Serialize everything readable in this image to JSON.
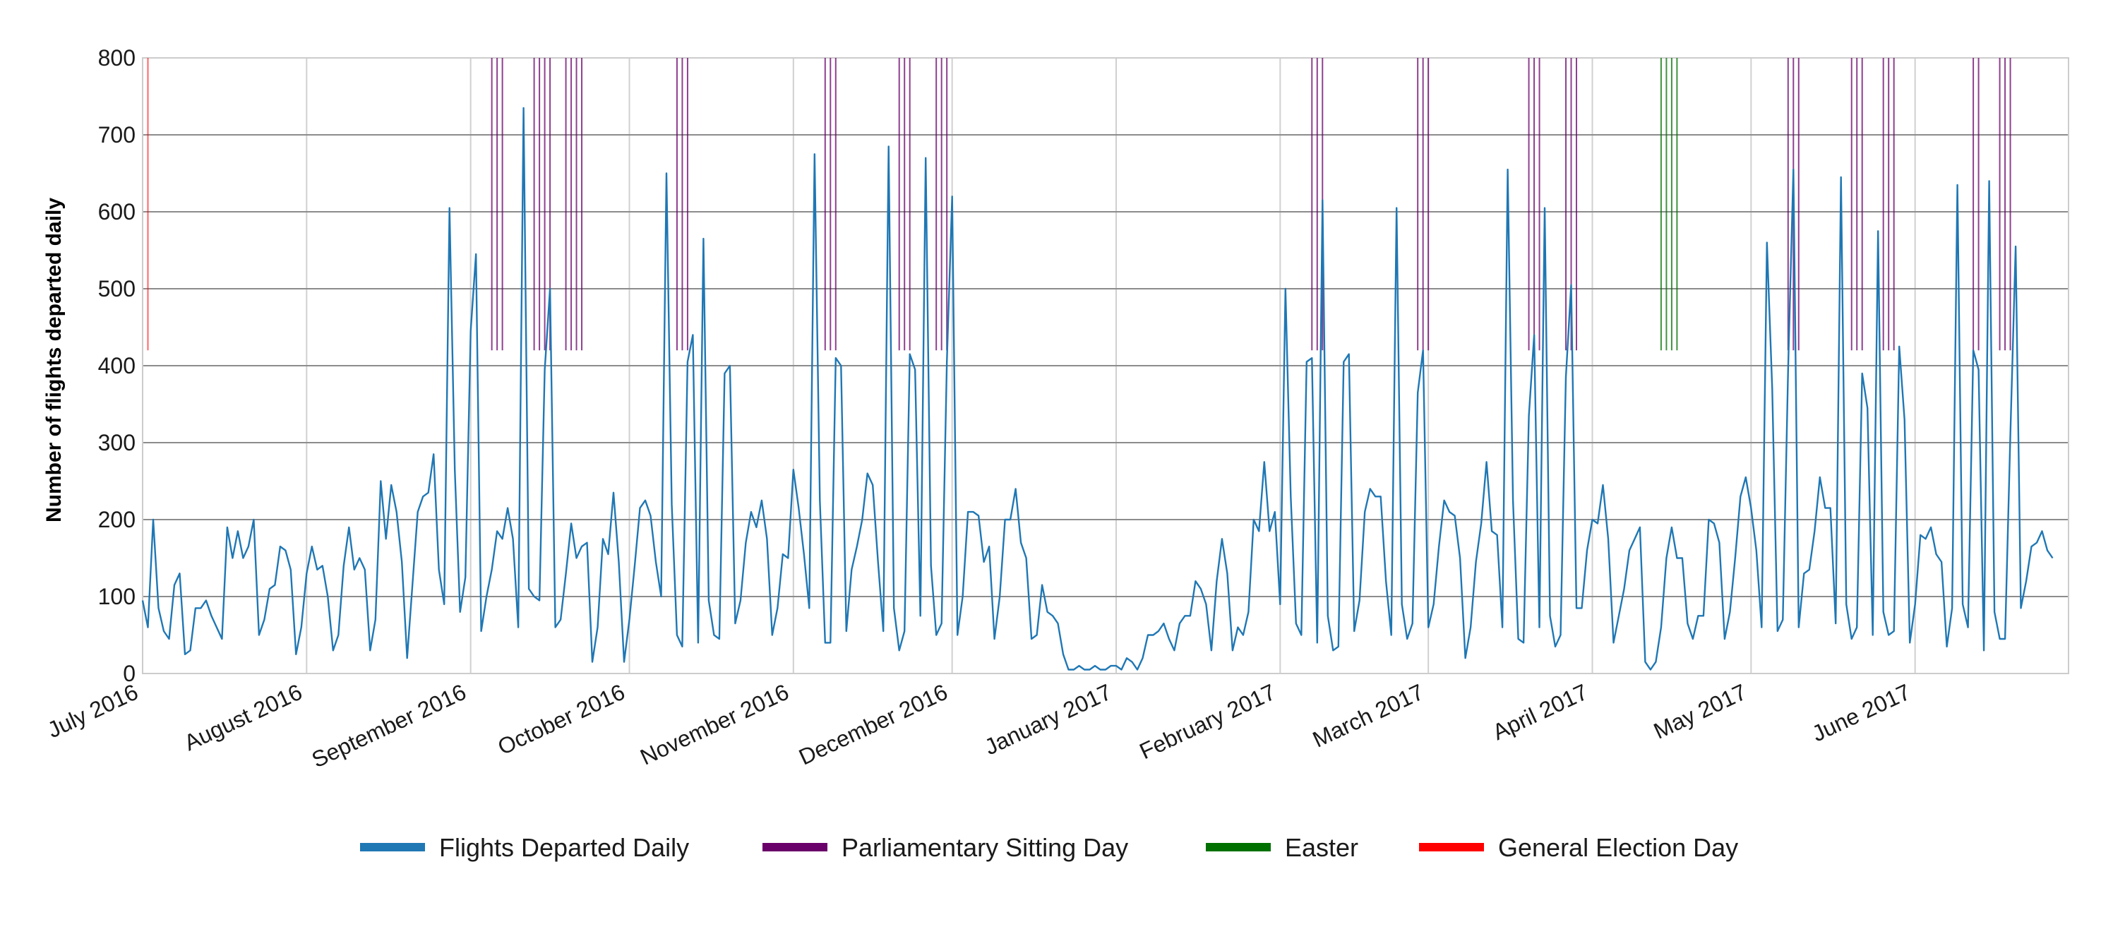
{
  "chart_data": {
    "type": "line",
    "title": "",
    "xlabel": "",
    "ylabel": "Number of flights departed daily",
    "ylim": [
      0,
      800
    ],
    "xlim": [
      "2016-07-01",
      "2017-06-30"
    ],
    "y_ticks": [
      "0",
      "100",
      "200",
      "300",
      "400",
      "500",
      "600",
      "700",
      "800"
    ],
    "x_ticks": [
      {
        "date": "2016-07-01",
        "label": "July 2016"
      },
      {
        "date": "2016-08-01",
        "label": "August 2016"
      },
      {
        "date": "2016-09-01",
        "label": "September 2016"
      },
      {
        "date": "2016-10-01",
        "label": "October 2016"
      },
      {
        "date": "2016-11-01",
        "label": "November 2016"
      },
      {
        "date": "2016-12-01",
        "label": "December 2016"
      },
      {
        "date": "2017-01-01",
        "label": "January 2017"
      },
      {
        "date": "2017-02-01",
        "label": "February 2017"
      },
      {
        "date": "2017-03-01",
        "label": "March 2017"
      },
      {
        "date": "2017-04-01",
        "label": "April 2017"
      },
      {
        "date": "2017-05-01",
        "label": "May 2017"
      },
      {
        "date": "2017-06-01",
        "label": "June 2017"
      }
    ],
    "grid": true,
    "legend_position": "bottom",
    "series": [
      {
        "name": "Flights Departed Daily",
        "color": "#1f77b4",
        "start_date": "2016-07-01",
        "frequency": "daily",
        "values": [
          95,
          60,
          200,
          85,
          55,
          45,
          115,
          130,
          25,
          30,
          85,
          85,
          95,
          75,
          60,
          45,
          190,
          150,
          185,
          150,
          165,
          200,
          50,
          70,
          110,
          115,
          165,
          160,
          135,
          25,
          60,
          130,
          165,
          135,
          140,
          100,
          30,
          50,
          140,
          190,
          135,
          150,
          135,
          30,
          70,
          250,
          175,
          245,
          210,
          145,
          20,
          115,
          210,
          230,
          235,
          285,
          135,
          90,
          605,
          265,
          80,
          125,
          445,
          545,
          55,
          100,
          135,
          185,
          175,
          215,
          175,
          60,
          735,
          110,
          100,
          95,
          395,
          500,
          60,
          70,
          130,
          195,
          150,
          165,
          170,
          15,
          60,
          175,
          155,
          235,
          145,
          15,
          70,
          140,
          215,
          225,
          205,
          145,
          100,
          650,
          220,
          50,
          35,
          405,
          440,
          40,
          565,
          95,
          50,
          45,
          390,
          400,
          65,
          95,
          170,
          210,
          190,
          225,
          175,
          50,
          85,
          155,
          150,
          265,
          215,
          155,
          85,
          675,
          225,
          40,
          40,
          410,
          400,
          55,
          135,
          165,
          200,
          260,
          245,
          145,
          55,
          685,
          85,
          30,
          55,
          415,
          395,
          75,
          670,
          140,
          50,
          65,
          405,
          620,
          50,
          100,
          210,
          210,
          205,
          145,
          165,
          45,
          100,
          200,
          200,
          240,
          170,
          150,
          45,
          50,
          115,
          80,
          75,
          65,
          25,
          5,
          5,
          10,
          5,
          5,
          10,
          5,
          5,
          10,
          10,
          5,
          20,
          15,
          5,
          20,
          50,
          50,
          55,
          65,
          45,
          30,
          65,
          75,
          75,
          120,
          110,
          90,
          30,
          120,
          175,
          130,
          30,
          60,
          50,
          80,
          200,
          185,
          275,
          185,
          210,
          90,
          500,
          230,
          65,
          50,
          405,
          410,
          40,
          615,
          75,
          30,
          35,
          405,
          415,
          55,
          95,
          210,
          240,
          230,
          230,
          120,
          50,
          605,
          90,
          45,
          65,
          365,
          420,
          60,
          90,
          165,
          225,
          210,
          205,
          150,
          20,
          60,
          145,
          195,
          275,
          185,
          180,
          60,
          655,
          225,
          45,
          40,
          335,
          440,
          60,
          605,
          75,
          35,
          50,
          385,
          505,
          85,
          85,
          160,
          200,
          195,
          245,
          175,
          40,
          75,
          110,
          160,
          175,
          190,
          15,
          5,
          15,
          60,
          150,
          190,
          150,
          150,
          65,
          45,
          75,
          75,
          200,
          195,
          170,
          45,
          80,
          150,
          230,
          255,
          215,
          160,
          60,
          560,
          370,
          55,
          70,
          395,
          655,
          60,
          130,
          135,
          185,
          255,
          215,
          215,
          65,
          645,
          90,
          45,
          60,
          390,
          345,
          50,
          575,
          80,
          50,
          55,
          425,
          330,
          40,
          90,
          180,
          175,
          190,
          155,
          145,
          35,
          85,
          635,
          90,
          60,
          420,
          395,
          30,
          640,
          80,
          45,
          45,
          310,
          555,
          85,
          120,
          165,
          170,
          185,
          160,
          150
        ]
      },
      {
        "name": "Parliamentary Sitting Day",
        "color": "#6a006a",
        "segment_range": [
          420,
          800
        ],
        "dates": [
          "2016-09-05",
          "2016-09-06",
          "2016-09-07",
          "2016-09-13",
          "2016-09-14",
          "2016-09-15",
          "2016-09-16",
          "2016-09-19",
          "2016-09-20",
          "2016-09-21",
          "2016-09-22",
          "2016-10-10",
          "2016-10-11",
          "2016-10-12",
          "2016-11-07",
          "2016-11-08",
          "2016-11-09",
          "2016-11-21",
          "2016-11-22",
          "2016-11-23",
          "2016-11-28",
          "2016-11-29",
          "2016-11-30",
          "2017-02-07",
          "2017-02-08",
          "2017-02-09",
          "2017-02-27",
          "2017-02-28",
          "2017-03-01",
          "2017-03-20",
          "2017-03-21",
          "2017-03-22",
          "2017-03-27",
          "2017-03-28",
          "2017-03-29",
          "2017-05-08",
          "2017-05-09",
          "2017-05-10",
          "2017-05-20",
          "2017-05-21",
          "2017-05-22",
          "2017-05-26",
          "2017-05-27",
          "2017-05-28",
          "2017-06-12",
          "2017-06-13",
          "2017-06-17",
          "2017-06-18",
          "2017-06-19"
        ]
      },
      {
        "name": "Easter",
        "color": "#007000",
        "segment_range": [
          420,
          800
        ],
        "dates": [
          "2017-04-14",
          "2017-04-15",
          "2017-04-16",
          "2017-04-17"
        ]
      },
      {
        "name": "General Election Day",
        "color": "#ff0000",
        "segment_range": [
          420,
          800
        ],
        "dates": [
          "2016-07-02"
        ]
      }
    ]
  }
}
